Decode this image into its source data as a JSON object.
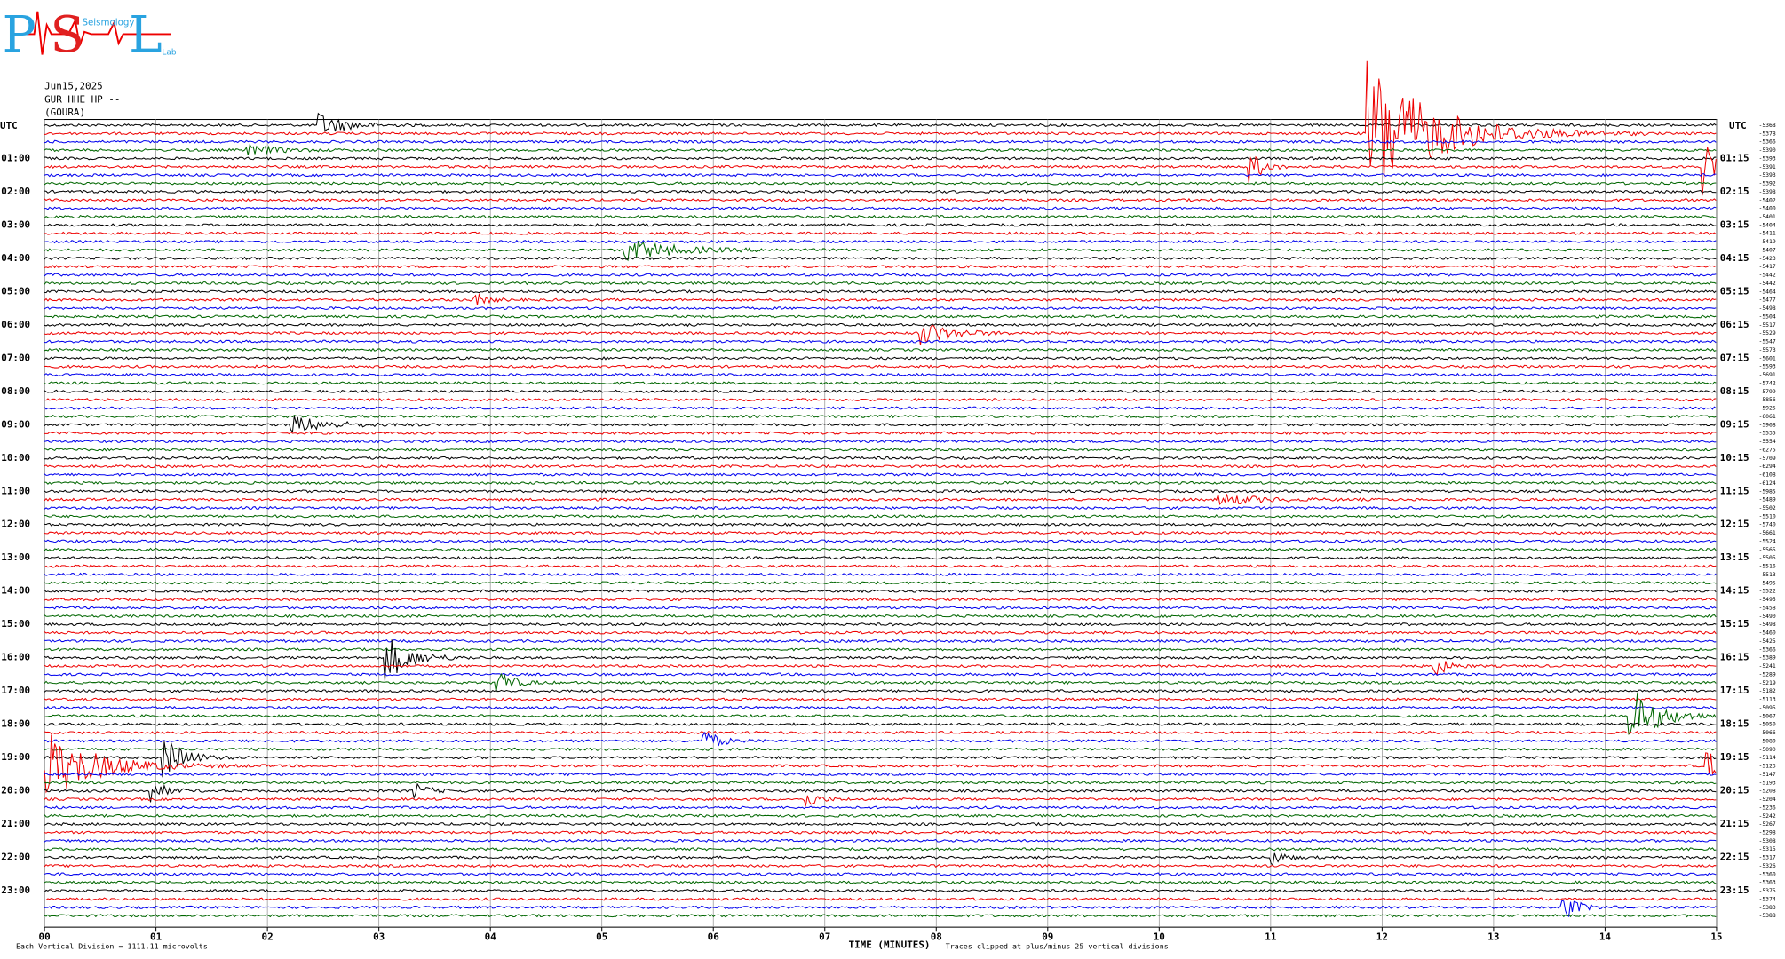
{
  "logo": {
    "letters": [
      "P",
      "S",
      "L"
    ],
    "words": [
      "Seismology",
      "Lab"
    ]
  },
  "header": {
    "date": "Jun15,2025",
    "channel": "GUR HHE HP --",
    "station": "(GOURA)"
  },
  "left_axis": {
    "title": "UTC",
    "labels": [
      "01:00",
      "02:00",
      "03:00",
      "04:00",
      "05:00",
      "06:00",
      "07:00",
      "08:00",
      "09:00",
      "10:00",
      "11:00",
      "12:00",
      "13:00",
      "14:00",
      "15:00",
      "16:00",
      "17:00",
      "18:00",
      "19:00",
      "20:00",
      "21:00",
      "22:00",
      "23:00"
    ]
  },
  "right_axis": {
    "title": "UTC",
    "labels": [
      "01:15",
      "02:15",
      "03:15",
      "04:15",
      "05:15",
      "06:15",
      "07:15",
      "08:15",
      "09:15",
      "10:15",
      "11:15",
      "12:15",
      "13:15",
      "14:15",
      "15:15",
      "16:15",
      "17:15",
      "18:15",
      "19:15",
      "20:15",
      "21:15",
      "22:15",
      "23:15"
    ]
  },
  "trace_offsets": [
    "-5368",
    "-5378",
    "-5366",
    "-5390",
    "-5393",
    "-5391",
    "-5393",
    "-5392",
    "-5398",
    "-5402",
    "-5400",
    "-5401",
    "-5404",
    "-5411",
    "-5419",
    "-5407",
    "-5423",
    "-5417",
    "-5442",
    "-5442",
    "-5464",
    "-5477",
    "-5498",
    "-5504",
    "-5517",
    "-5529",
    "-5547",
    "-5573",
    "-5601",
    "-5593",
    "-5691",
    "-5742",
    "-5799",
    "-5856",
    "-5925",
    "-6061",
    "-5968",
    "-5535",
    "-5554",
    "-6275",
    "-5709",
    "-6294",
    "-6108",
    "-6124",
    "-5985",
    "-5489",
    "-5502",
    "-5510",
    "-5740",
    "-5661",
    "-5524",
    "-5565",
    "-5505",
    "-5516",
    "-5513",
    "-5495",
    "-5522",
    "-5495",
    "-5458",
    "-5490",
    "-5498",
    "-5460",
    "-5425",
    "-5366",
    "-5389",
    "-5241",
    "-5289",
    "-5219",
    "-5182",
    "-5113",
    "-5095",
    "-5067",
    "-5050",
    "-5066",
    "-5080",
    "-5090",
    "-5114",
    "-5123",
    "-5147",
    "-5193",
    "-5208",
    "-5204",
    "-5236",
    "-5242",
    "-5267",
    "-5298",
    "-5308",
    "-5315",
    "-5317",
    "-5326",
    "-5360",
    "-5363",
    "-5375",
    "-5374",
    "-5383",
    "-5388"
  ],
  "x_axis": {
    "title": "TIME (MINUTES)",
    "labels": [
      "00",
      "01",
      "02",
      "03",
      "04",
      "05",
      "06",
      "07",
      "08",
      "09",
      "10",
      "11",
      "12",
      "13",
      "14",
      "15"
    ]
  },
  "footer": {
    "scale": "Each Vertical Division = 1111.11 microvolts",
    "clip": "Traces clipped at plus/minus 25 vertical divisions"
  }
}
